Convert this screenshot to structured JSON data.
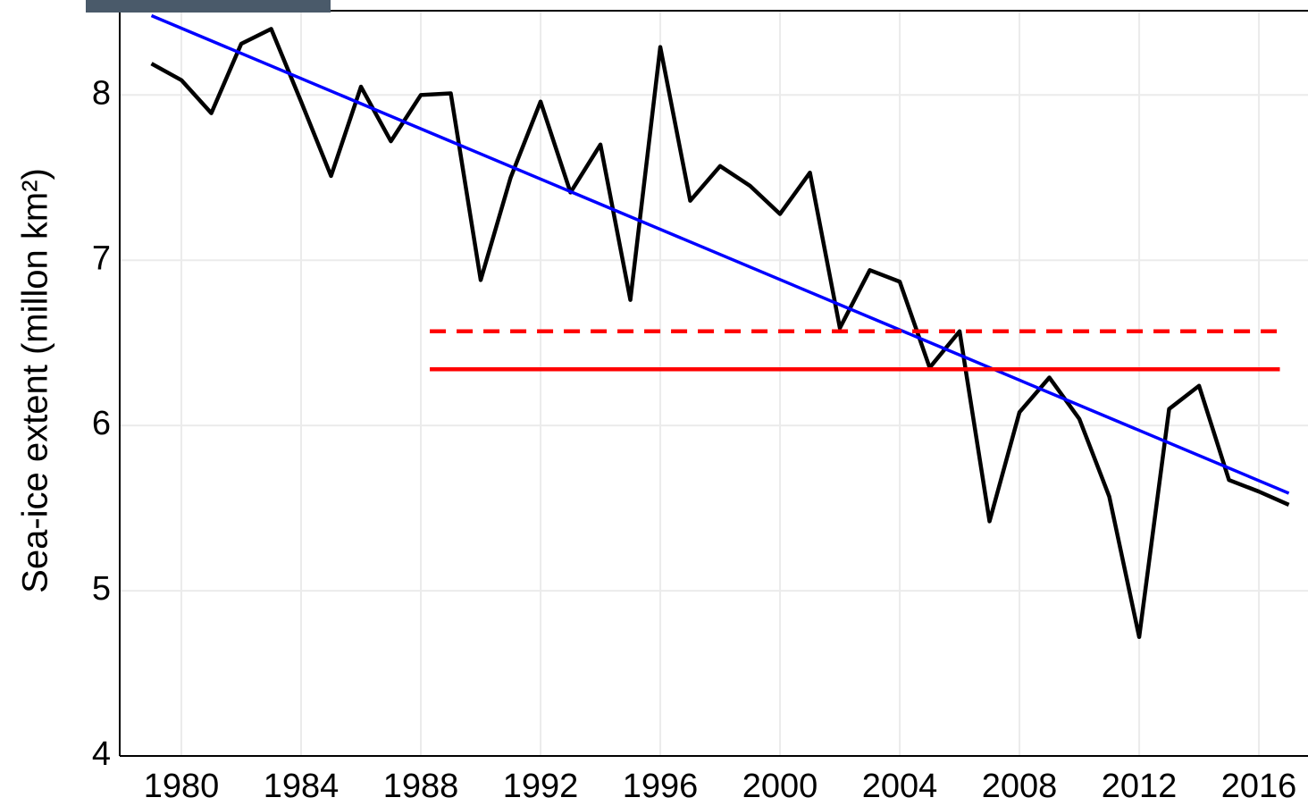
{
  "chart_data": {
    "type": "line",
    "y_label": "Sea-ice extent (millon km²)",
    "x": [
      1979,
      1980,
      1981,
      1982,
      1983,
      1984,
      1985,
      1986,
      1987,
      1988,
      1989,
      1990,
      1991,
      1992,
      1993,
      1994,
      1995,
      1996,
      1997,
      1998,
      1999,
      2000,
      2001,
      2002,
      2003,
      2004,
      2005,
      2006,
      2007,
      2008,
      2009,
      2010,
      2011,
      2012,
      2013,
      2014,
      2015,
      2016,
      2017
    ],
    "series": [
      {
        "color": "#000000",
        "width": 4.5,
        "dash": false,
        "values": [
          8.19,
          8.09,
          7.89,
          8.31,
          8.4,
          7.96,
          7.51,
          8.05,
          7.72,
          8.0,
          8.01,
          6.88,
          7.5,
          7.96,
          7.41,
          7.7,
          6.76,
          8.29,
          7.36,
          7.57,
          7.45,
          7.28,
          7.53,
          6.59,
          6.94,
          6.87,
          6.35,
          6.57,
          5.42,
          6.08,
          6.29,
          6.04,
          5.57,
          4.72,
          6.1,
          6.24,
          5.67,
          5.6,
          5.52
        ]
      },
      {
        "color": "#0000ff",
        "width": 3.5,
        "dash": false,
        "x": [
          1979,
          2017
        ],
        "values": [
          8.48,
          5.59
        ]
      },
      {
        "color": "#ff0000",
        "width": 4.5,
        "dash": true,
        "x": [
          1988.3,
          2016.7
        ],
        "values": [
          6.57,
          6.57
        ]
      },
      {
        "color": "#ff0000",
        "width": 4.5,
        "dash": false,
        "x": [
          1988.3,
          2016.7
        ],
        "values": [
          6.34,
          6.34
        ]
      }
    ],
    "xlim": [
      1977.94,
      2017.64
    ],
    "ylim": [
      4,
      8.51
    ],
    "xticks": [
      1980,
      1984,
      1988,
      1992,
      1996,
      2000,
      2004,
      2008,
      2012,
      2016
    ],
    "yticks": [
      4,
      5,
      6,
      7,
      8
    ],
    "grid": true
  }
}
